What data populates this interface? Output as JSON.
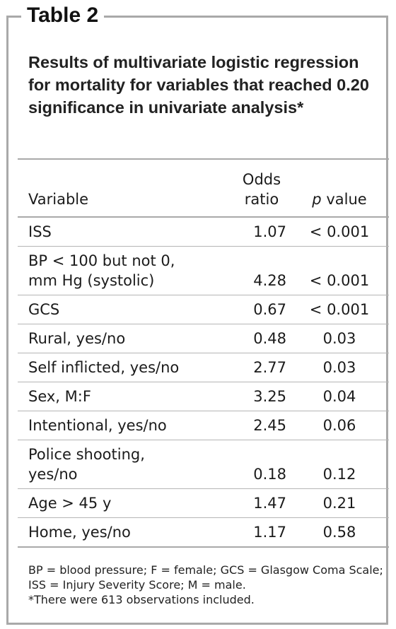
{
  "header": {
    "label": "Table 2",
    "title": "Results of multivariate logistic regression for mortality for variables that reached 0.20 significance in univariate analysis*"
  },
  "table": {
    "columns": [
      "Variable",
      "Odds ratio",
      "p value"
    ],
    "rows": [
      [
        "ISS",
        1.07,
        "< 0.001"
      ],
      [
        "BP < 100 but not 0, mm Hg (systolic)",
        4.28,
        "< 0.001"
      ],
      [
        "GCS",
        0.67,
        "< 0.001"
      ],
      [
        "Rural, yes/no",
        0.48,
        0.03
      ],
      [
        "Self inflicted, yes/no",
        2.77,
        0.03
      ],
      [
        "Sex, M:F",
        3.25,
        0.04
      ],
      [
        "Intentional, yes/no",
        2.45,
        0.06
      ],
      [
        "Police shooting, yes/no",
        0.18,
        0.12
      ],
      [
        "Age > 45 y",
        1.47,
        0.21
      ],
      [
        "Home, yes/no",
        1.17,
        0.58
      ]
    ]
  },
  "footnotes": [
    "BP = blood pressure; F = female; GCS = Glasgow Coma Scale; ISS = Injury Severity Score; M = male.",
    "*There were 613 observations included."
  ]
}
